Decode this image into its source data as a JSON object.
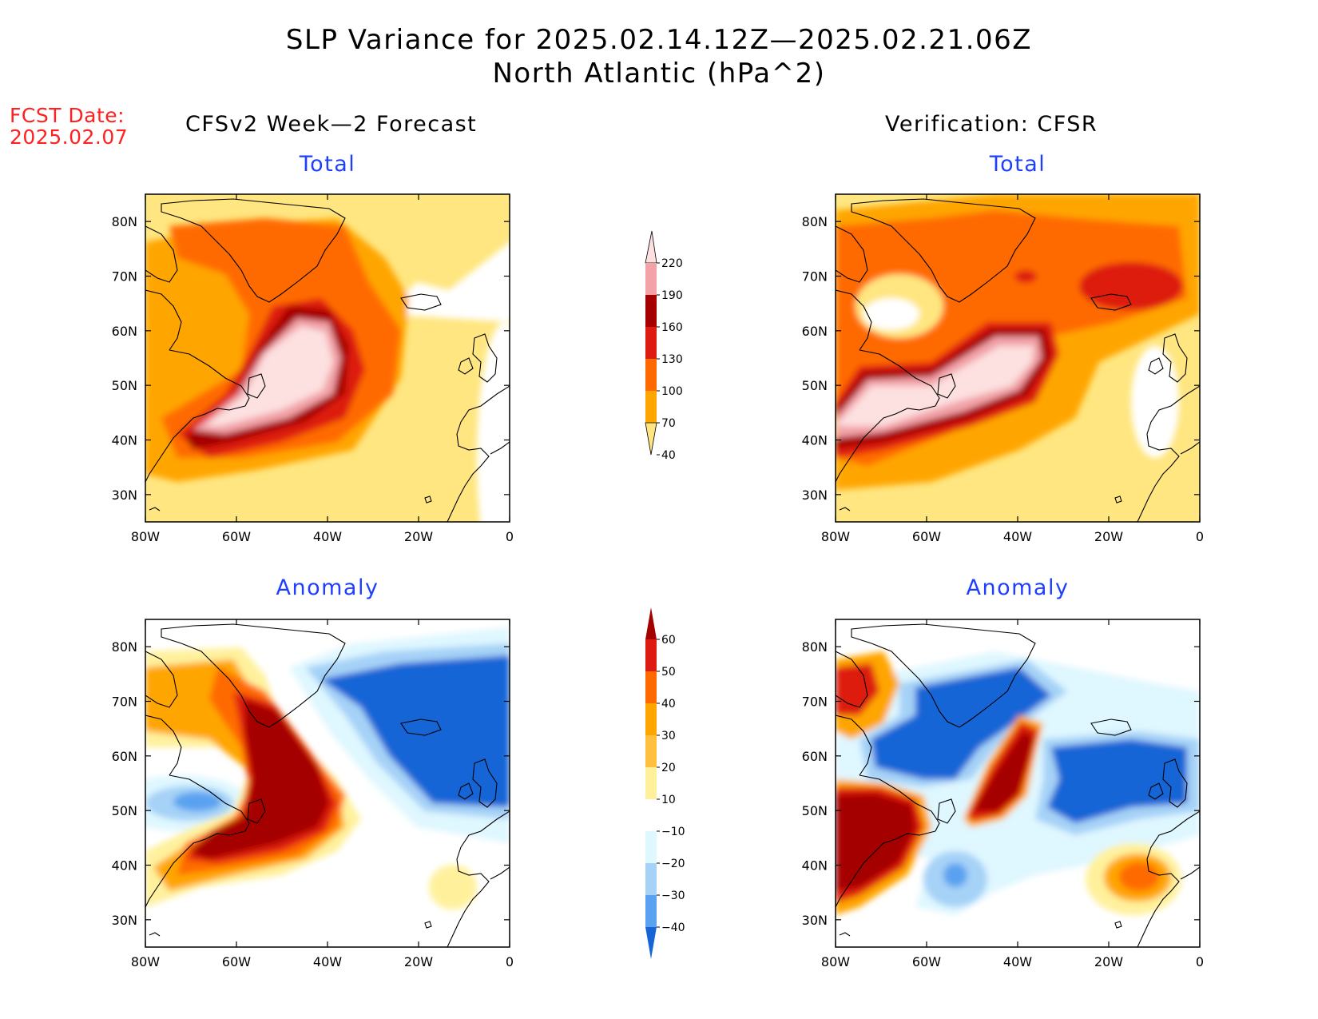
{
  "title": {
    "line1": "SLP Variance for 2025.02.14.12Z—2025.02.21.06Z",
    "line2": "North Atlantic (hPa^2)"
  },
  "fcst": {
    "label": "FCST Date:",
    "date": "2025.02.07"
  },
  "columns": {
    "left": "CFSv2 Week—2 Forecast",
    "right": "Verification: CFSR"
  },
  "panels": {
    "total_label": "Total",
    "anomaly_label": "Anomaly"
  },
  "axes": {
    "lat_ticks": [
      "80N",
      "70N",
      "60N",
      "50N",
      "40N",
      "30N"
    ],
    "lon_ticks": [
      "80W",
      "60W",
      "40W",
      "20W",
      "0"
    ]
  },
  "colorbars": {
    "total": {
      "levels": [
        "220",
        "190",
        "160",
        "130",
        "100",
        "70",
        "40"
      ],
      "colors": [
        "#fde0e0",
        "#f2a3a8",
        "#a50000",
        "#dd1b10",
        "#ff6a00",
        "#ffa500",
        "#ffe680"
      ]
    },
    "anomaly": {
      "levels": [
        "60",
        "50",
        "40",
        "30",
        "20",
        "10",
        "−10",
        "−20",
        "−30",
        "−40"
      ],
      "colors": [
        "#a50000",
        "#dd1b10",
        "#ff6a00",
        "#ffa500",
        "#ffc040",
        "#fff19c",
        "#ffffff",
        "#dff7ff",
        "#a6d2f7",
        "#5aa2f0",
        "#1565d6"
      ]
    }
  },
  "fields": {
    "fcst_total": "CFSv2 week-2 forecast total SLP variance: maximum >220 centered near 50N 45W over Newfoundland basin",
    "cfsr_total": "CFSR total SLP variance: elongated maximum >220 from US east coast to 55N 35W",
    "fcst_anomaly": "Forecast anomaly: strong positive >60 from 40N 70W to 60N 50W, negative -30 to -40 over northeast Atlantic",
    "cfsr_anomaly": "Verification anomaly: positive cores near 45N 75W and 52N 45W, negative centers near Labrador, Greenland and 50N 20W"
  }
}
